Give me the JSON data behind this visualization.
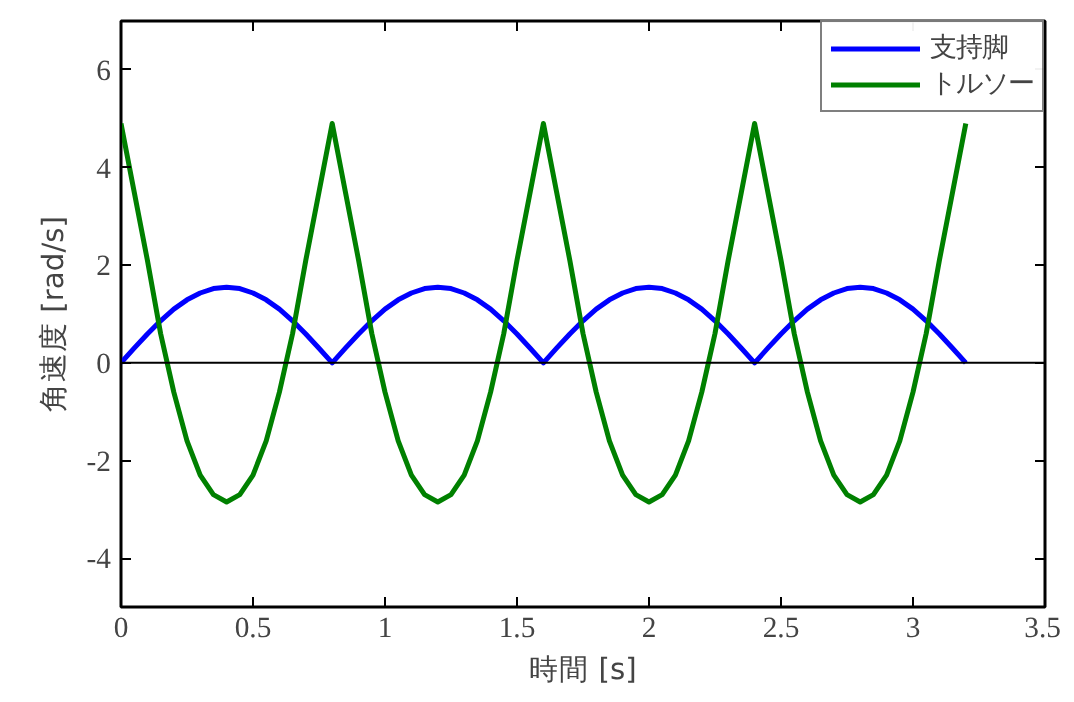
{
  "chart_data": {
    "type": "line",
    "xlabel": "時間 [s]",
    "ylabel": "角速度 [rad/s]",
    "x": [
      0,
      0.05,
      0.1,
      0.15,
      0.2,
      0.25,
      0.3,
      0.35,
      0.4,
      0.45,
      0.5,
      0.55,
      0.6,
      0.65,
      0.7,
      0.75,
      0.8,
      0.85,
      0.9,
      0.95,
      1,
      1.05,
      1.1,
      1.15,
      1.2,
      1.25,
      1.3,
      1.35,
      1.4,
      1.45,
      1.5,
      1.55,
      1.6,
      1.65,
      1.7,
      1.75,
      1.8,
      1.85,
      1.9,
      1.95,
      2,
      2.05,
      2.1,
      2.15,
      2.2,
      2.25,
      2.3,
      2.35,
      2.4,
      2.45,
      2.5,
      2.55,
      2.6,
      2.65,
      2.7,
      2.75,
      2.8,
      2.85,
      2.9,
      2.95,
      3,
      3.05,
      3.1,
      3.15,
      3.2
    ],
    "series": [
      {
        "name": "支持脚",
        "color": "#0000ff",
        "values": [
          0,
          0.3,
          0.59,
          0.86,
          1.1,
          1.29,
          1.43,
          1.52,
          1.55,
          1.52,
          1.43,
          1.29,
          1.1,
          0.86,
          0.59,
          0.3,
          0,
          0.3,
          0.59,
          0.86,
          1.1,
          1.29,
          1.43,
          1.52,
          1.55,
          1.52,
          1.43,
          1.29,
          1.1,
          0.86,
          0.59,
          0.3,
          0,
          0.3,
          0.59,
          0.86,
          1.1,
          1.29,
          1.43,
          1.52,
          1.55,
          1.52,
          1.43,
          1.29,
          1.1,
          0.86,
          0.59,
          0.3,
          0,
          0.3,
          0.59,
          0.86,
          1.1,
          1.29,
          1.43,
          1.52,
          1.55,
          1.52,
          1.43,
          1.29,
          1.1,
          0.86,
          0.59,
          0.3,
          0
        ]
      },
      {
        "name": "トルソー",
        "color": "#008000",
        "values": [
          4.9,
          3.5,
          2.1,
          0.6,
          -0.6,
          -1.6,
          -2.3,
          -2.7,
          -2.85,
          -2.7,
          -2.3,
          -1.6,
          -0.6,
          0.6,
          2.1,
          3.5,
          4.9,
          3.5,
          2.1,
          0.6,
          -0.6,
          -1.6,
          -2.3,
          -2.7,
          -2.85,
          -2.7,
          -2.3,
          -1.6,
          -0.6,
          0.6,
          2.1,
          3.5,
          4.9,
          3.5,
          2.1,
          0.6,
          -0.6,
          -1.6,
          -2.3,
          -2.7,
          -2.85,
          -2.7,
          -2.3,
          -1.6,
          -0.6,
          0.6,
          2.1,
          3.5,
          4.9,
          3.5,
          2.1,
          0.6,
          -0.6,
          -1.6,
          -2.3,
          -2.7,
          -2.85,
          -2.7,
          -2.3,
          -1.6,
          -0.6,
          0.6,
          2.1,
          3.5,
          4.9
        ]
      }
    ],
    "xlim": [
      0,
      3.5
    ],
    "xticks": [
      0,
      0.5,
      1,
      1.5,
      2,
      2.5,
      3,
      3.5
    ],
    "ylim": [
      -5,
      7
    ],
    "yticks": [
      -4,
      -2,
      0,
      2,
      4,
      6
    ],
    "ref_lines": [
      {
        "axis": "y",
        "value": 0,
        "color": "#000000"
      }
    ],
    "legend": "top right",
    "grid": false
  }
}
